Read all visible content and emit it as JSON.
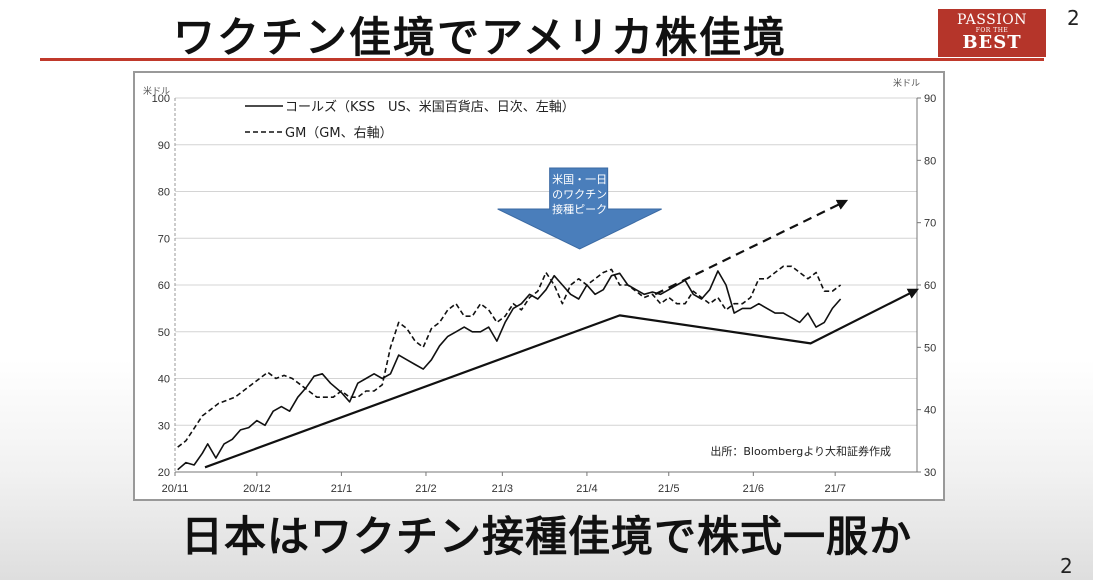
{
  "slide": {
    "title": "ワクチン佳境でアメリカ株佳境",
    "subtitle": "日本はワクチン接種佳境で株式一服か",
    "page_number_top": "2",
    "page_number_bottom": "2",
    "logo": {
      "line1": "PASSION",
      "line2": "FOR THE",
      "line3": "BEST",
      "color": "#b5352a"
    }
  },
  "chart_data": {
    "type": "line",
    "left_unit": "米ドル",
    "right_unit": "米ドル",
    "y_left_range": [
      20,
      100
    ],
    "y_right_range": [
      30,
      90
    ],
    "y_left_ticks": [
      "20",
      "30",
      "40",
      "50",
      "60",
      "70",
      "80",
      "90",
      "100"
    ],
    "y_right_ticks": [
      "30",
      "40",
      "50",
      "60",
      "70",
      "80",
      "90"
    ],
    "x_range": [
      "2020-11-01",
      "2021-07-31"
    ],
    "x_ticks": [
      {
        "label": "20/11",
        "date": "2020-11-01"
      },
      {
        "label": "20/12",
        "date": "2020-12-01"
      },
      {
        "label": "21/1",
        "date": "2021-01-01"
      },
      {
        "label": "21/2",
        "date": "2021-02-01"
      },
      {
        "label": "21/3",
        "date": "2021-03-01"
      },
      {
        "label": "21/4",
        "date": "2021-04-01"
      },
      {
        "label": "21/5",
        "date": "2021-05-01"
      },
      {
        "label": "21/6",
        "date": "2021-06-01"
      },
      {
        "label": "21/7",
        "date": "2021-07-01"
      }
    ],
    "grid": true,
    "legend_position": "top-left",
    "source": "出所：Bloombergより大和証券作成",
    "annotation": {
      "lines": [
        "米国・一日",
        "のワクチン",
        "接種ピーク"
      ],
      "date": "2021-04-13",
      "color": "#4a7ebb"
    },
    "series": [
      {
        "name": "コールズ（KSS　US、米国百貨店、日次、左軸）",
        "axis": "left",
        "style": "solid",
        "color": "#111111",
        "points": [
          [
            "2020-11-02",
            20.5
          ],
          [
            "2020-11-05",
            22
          ],
          [
            "2020-11-08",
            21.5
          ],
          [
            "2020-11-11",
            24
          ],
          [
            "2020-11-13",
            26
          ],
          [
            "2020-11-16",
            23
          ],
          [
            "2020-11-19",
            26
          ],
          [
            "2020-11-22",
            27
          ],
          [
            "2020-11-25",
            29
          ],
          [
            "2020-11-28",
            29.5
          ],
          [
            "2020-12-01",
            31
          ],
          [
            "2020-12-04",
            30
          ],
          [
            "2020-12-07",
            33
          ],
          [
            "2020-12-10",
            34
          ],
          [
            "2020-12-13",
            33
          ],
          [
            "2020-12-16",
            36
          ],
          [
            "2020-12-19",
            38
          ],
          [
            "2020-12-22",
            40.5
          ],
          [
            "2020-12-25",
            41
          ],
          [
            "2020-12-28",
            39
          ],
          [
            "2021-01-01",
            37
          ],
          [
            "2021-01-04",
            35
          ],
          [
            "2021-01-07",
            39
          ],
          [
            "2021-01-10",
            40
          ],
          [
            "2021-01-13",
            41
          ],
          [
            "2021-01-16",
            40
          ],
          [
            "2021-01-19",
            41
          ],
          [
            "2021-01-22",
            45
          ],
          [
            "2021-01-25",
            44
          ],
          [
            "2021-01-28",
            43
          ],
          [
            "2021-01-31",
            42
          ],
          [
            "2021-02-03",
            44
          ],
          [
            "2021-02-06",
            47
          ],
          [
            "2021-02-09",
            49
          ],
          [
            "2021-02-12",
            50
          ],
          [
            "2021-02-15",
            51
          ],
          [
            "2021-02-18",
            50
          ],
          [
            "2021-02-21",
            50
          ],
          [
            "2021-02-24",
            51
          ],
          [
            "2021-02-27",
            48
          ],
          [
            "2021-03-02",
            52
          ],
          [
            "2021-03-05",
            55
          ],
          [
            "2021-03-08",
            56
          ],
          [
            "2021-03-11",
            58
          ],
          [
            "2021-03-14",
            57
          ],
          [
            "2021-03-17",
            59
          ],
          [
            "2021-03-20",
            62
          ],
          [
            "2021-03-23",
            60
          ],
          [
            "2021-03-26",
            58
          ],
          [
            "2021-03-29",
            57
          ],
          [
            "2021-04-01",
            60
          ],
          [
            "2021-04-04",
            58
          ],
          [
            "2021-04-07",
            59
          ],
          [
            "2021-04-10",
            62
          ],
          [
            "2021-04-13",
            62.5
          ],
          [
            "2021-04-16",
            60
          ],
          [
            "2021-04-19",
            59
          ],
          [
            "2021-04-22",
            58
          ],
          [
            "2021-04-25",
            58.5
          ],
          [
            "2021-04-28",
            58
          ],
          [
            "2021-05-01",
            59
          ],
          [
            "2021-05-04",
            60
          ],
          [
            "2021-05-07",
            61
          ],
          [
            "2021-05-10",
            58
          ],
          [
            "2021-05-13",
            57
          ],
          [
            "2021-05-16",
            59
          ],
          [
            "2021-05-19",
            63
          ],
          [
            "2021-05-22",
            60
          ],
          [
            "2021-05-25",
            54
          ],
          [
            "2021-05-28",
            55
          ],
          [
            "2021-05-31",
            55
          ],
          [
            "2021-06-03",
            56
          ],
          [
            "2021-06-06",
            55
          ],
          [
            "2021-06-09",
            54
          ],
          [
            "2021-06-12",
            54
          ],
          [
            "2021-06-15",
            53
          ],
          [
            "2021-06-18",
            52
          ],
          [
            "2021-06-21",
            54
          ],
          [
            "2021-06-24",
            51
          ],
          [
            "2021-06-27",
            52
          ],
          [
            "2021-06-30",
            55
          ],
          [
            "2021-07-03",
            57
          ]
        ]
      },
      {
        "name": "GM（GM、右軸）",
        "axis": "right",
        "style": "dashed",
        "color": "#111111",
        "points": [
          [
            "2020-11-02",
            34
          ],
          [
            "2020-11-05",
            35
          ],
          [
            "2020-11-08",
            37
          ],
          [
            "2020-11-11",
            39
          ],
          [
            "2020-11-14",
            40
          ],
          [
            "2020-11-17",
            41
          ],
          [
            "2020-11-20",
            41.5
          ],
          [
            "2020-11-23",
            42
          ],
          [
            "2020-11-26",
            43
          ],
          [
            "2020-11-29",
            44
          ],
          [
            "2020-12-02",
            45
          ],
          [
            "2020-12-05",
            46
          ],
          [
            "2020-12-08",
            45
          ],
          [
            "2020-12-11",
            45.5
          ],
          [
            "2020-12-14",
            45
          ],
          [
            "2020-12-17",
            44
          ],
          [
            "2020-12-20",
            43
          ],
          [
            "2020-12-23",
            42
          ],
          [
            "2020-12-26",
            42
          ],
          [
            "2020-12-29",
            42
          ],
          [
            "2021-01-01",
            43
          ],
          [
            "2021-01-04",
            42
          ],
          [
            "2021-01-07",
            42
          ],
          [
            "2021-01-10",
            43
          ],
          [
            "2021-01-13",
            43
          ],
          [
            "2021-01-16",
            44
          ],
          [
            "2021-01-19",
            50
          ],
          [
            "2021-01-22",
            54
          ],
          [
            "2021-01-25",
            53
          ],
          [
            "2021-01-28",
            51
          ],
          [
            "2021-01-31",
            50
          ],
          [
            "2021-02-03",
            53
          ],
          [
            "2021-02-06",
            54
          ],
          [
            "2021-02-09",
            56
          ],
          [
            "2021-02-12",
            57
          ],
          [
            "2021-02-15",
            55
          ],
          [
            "2021-02-18",
            55
          ],
          [
            "2021-02-21",
            57
          ],
          [
            "2021-02-24",
            56
          ],
          [
            "2021-02-27",
            54
          ],
          [
            "2021-03-02",
            55
          ],
          [
            "2021-03-05",
            57
          ],
          [
            "2021-03-08",
            56
          ],
          [
            "2021-03-11",
            58
          ],
          [
            "2021-03-14",
            59
          ],
          [
            "2021-03-17",
            62
          ],
          [
            "2021-03-20",
            60
          ],
          [
            "2021-03-23",
            57
          ],
          [
            "2021-03-26",
            60
          ],
          [
            "2021-03-29",
            61
          ],
          [
            "2021-04-01",
            60
          ],
          [
            "2021-04-04",
            61
          ],
          [
            "2021-04-07",
            62
          ],
          [
            "2021-04-10",
            62.5
          ],
          [
            "2021-04-13",
            60
          ],
          [
            "2021-04-16",
            60
          ],
          [
            "2021-04-19",
            59
          ],
          [
            "2021-04-22",
            58
          ],
          [
            "2021-04-25",
            58.5
          ],
          [
            "2021-04-28",
            57
          ],
          [
            "2021-05-01",
            58
          ],
          [
            "2021-05-04",
            57
          ],
          [
            "2021-05-07",
            57
          ],
          [
            "2021-05-10",
            59
          ],
          [
            "2021-05-13",
            58
          ],
          [
            "2021-05-16",
            57
          ],
          [
            "2021-05-19",
            58
          ],
          [
            "2021-05-22",
            56
          ],
          [
            "2021-05-25",
            57
          ],
          [
            "2021-05-28",
            57
          ],
          [
            "2021-05-31",
            58
          ],
          [
            "2021-06-03",
            61
          ],
          [
            "2021-06-06",
            61
          ],
          [
            "2021-06-09",
            62
          ],
          [
            "2021-06-12",
            63
          ],
          [
            "2021-06-15",
            63
          ],
          [
            "2021-06-18",
            62
          ],
          [
            "2021-06-21",
            61
          ],
          [
            "2021-06-24",
            62
          ],
          [
            "2021-06-27",
            59
          ],
          [
            "2021-06-30",
            59
          ],
          [
            "2021-07-03",
            60
          ]
        ]
      },
      {
        "name": "trend-kss",
        "axis": "left",
        "style": "solid",
        "color": "#111111",
        "points": [
          [
            "2020-11-12",
            21
          ],
          [
            "2021-04-13",
            53.5
          ],
          [
            "2021-06-22",
            47.5
          ],
          [
            "2021-07-31",
            59
          ]
        ]
      },
      {
        "name": "trend-gm",
        "axis": "right",
        "style": "dashed",
        "color": "#111111",
        "points": [
          [
            "2021-04-26",
            58.5
          ],
          [
            "2021-07-05",
            73.5
          ]
        ]
      }
    ]
  }
}
